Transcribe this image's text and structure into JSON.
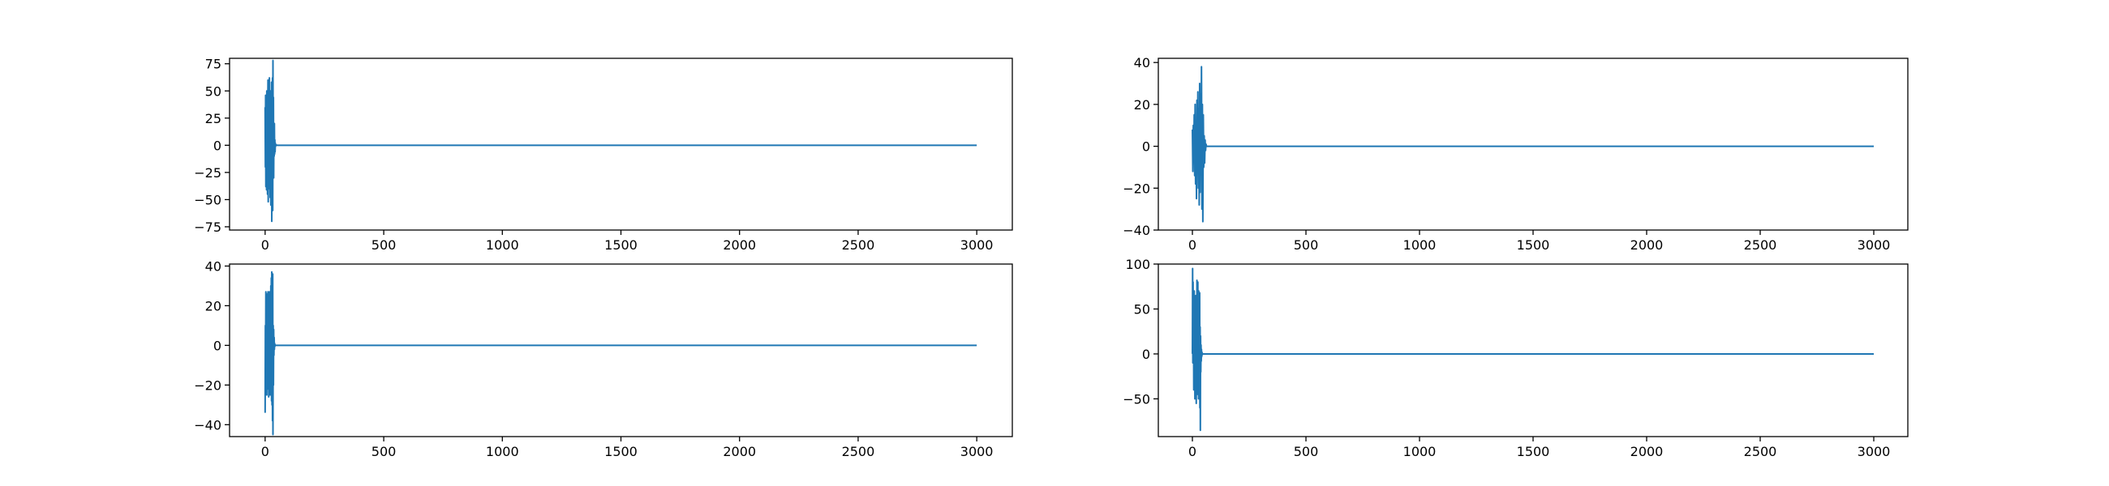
{
  "figure": {
    "background": "#ffffff",
    "line_color": "#1f77b4"
  },
  "chart_data": [
    {
      "type": "line",
      "panel": "top-left",
      "title": "",
      "xlabel": "",
      "ylabel": "",
      "xlim": [
        -150,
        3150
      ],
      "ylim": [
        -78,
        80
      ],
      "xticks": [
        0,
        500,
        1000,
        1500,
        2000,
        2500,
        3000
      ],
      "xtick_labels": [
        "0",
        "500",
        "1000",
        "1500",
        "2000",
        "2500",
        "3000"
      ],
      "yticks": [
        -75,
        -50,
        -25,
        0,
        25,
        50,
        75
      ],
      "ytick_labels": [
        "−75",
        "−50",
        "−25",
        "0",
        "25",
        "50",
        "75"
      ],
      "grid": false,
      "series": [
        {
          "x": [
            0,
            1,
            2,
            3,
            4,
            5,
            6,
            7,
            8,
            9,
            10,
            11,
            12,
            13,
            14,
            15,
            16,
            17,
            18,
            19,
            20,
            21,
            22,
            23,
            24,
            25,
            26,
            27,
            28,
            29,
            30,
            31,
            32,
            33,
            34,
            35,
            36,
            37,
            38,
            39,
            40,
            41,
            42,
            43,
            44,
            45,
            50,
            60,
            80,
            3000
          ],
          "y": [
            35,
            -20,
            46,
            -38,
            44,
            10,
            -41,
            50,
            -25,
            48,
            -45,
            30,
            60,
            -52,
            38,
            -30,
            55,
            -40,
            62,
            -20,
            45,
            -48,
            20,
            50,
            -55,
            30,
            -35,
            58,
            -70,
            40,
            -45,
            62,
            -60,
            78,
            -20,
            44,
            -30,
            15,
            -10,
            20,
            -8,
            5,
            -6,
            2,
            -1,
            0.5,
            0,
            0,
            0,
            0
          ]
        }
      ]
    },
    {
      "type": "line",
      "panel": "top-right",
      "title": "",
      "xlabel": "",
      "ylabel": "",
      "xlim": [
        -150,
        3150
      ],
      "ylim": [
        -40,
        42
      ],
      "xticks": [
        0,
        500,
        1000,
        1500,
        2000,
        2500,
        3000
      ],
      "xtick_labels": [
        "0",
        "500",
        "1000",
        "1500",
        "2000",
        "2500",
        "3000"
      ],
      "yticks": [
        -40,
        -20,
        0,
        20,
        40
      ],
      "ytick_labels": [
        "−40",
        "−20",
        "0",
        "20",
        "40"
      ],
      "grid": false,
      "series": [
        {
          "x": [
            0,
            2,
            4,
            6,
            8,
            10,
            12,
            14,
            16,
            18,
            20,
            22,
            24,
            26,
            28,
            30,
            32,
            34,
            36,
            38,
            40,
            42,
            44,
            46,
            48,
            50,
            52,
            54,
            56,
            58,
            60,
            62,
            70,
            90,
            3000
          ],
          "y": [
            8,
            -12,
            10,
            -6,
            15,
            -14,
            20,
            -18,
            12,
            -25,
            22,
            -10,
            26,
            -20,
            18,
            -28,
            30,
            -22,
            25,
            -12,
            38,
            -30,
            20,
            -36,
            15,
            -10,
            5,
            -8,
            3,
            -2,
            1,
            0,
            0,
            0,
            0
          ]
        }
      ]
    },
    {
      "type": "line",
      "panel": "bottom-left",
      "title": "",
      "xlabel": "",
      "ylabel": "",
      "xlim": [
        -150,
        3150
      ],
      "ylim": [
        -46,
        41
      ],
      "xticks": [
        0,
        500,
        1000,
        1500,
        2000,
        2500,
        3000
      ],
      "xtick_labels": [
        "0",
        "500",
        "1000",
        "1500",
        "2000",
        "2500",
        "3000"
      ],
      "yticks": [
        -40,
        -20,
        0,
        20,
        40
      ],
      "ytick_labels": [
        "−40",
        "−20",
        "0",
        "20",
        "40"
      ],
      "grid": false,
      "series": [
        {
          "x": [
            0,
            1,
            2,
            3,
            4,
            5,
            6,
            7,
            8,
            9,
            10,
            11,
            12,
            13,
            14,
            15,
            16,
            17,
            18,
            19,
            20,
            21,
            22,
            23,
            24,
            25,
            26,
            27,
            28,
            29,
            30,
            31,
            32,
            33,
            34,
            35,
            36,
            37,
            38,
            39,
            40,
            41,
            42,
            44,
            50,
            60,
            80,
            3000
          ],
          "y": [
            -34,
            10,
            -15,
            27,
            -20,
            15,
            26,
            -25,
            20,
            -10,
            25,
            -18,
            27,
            -22,
            12,
            -26,
            24,
            -12,
            27,
            -8,
            18,
            -25,
            26,
            -15,
            30,
            -20,
            34,
            -28,
            37,
            -30,
            22,
            -38,
            36,
            -45,
            10,
            -20,
            8,
            -5,
            4,
            -2,
            1,
            -0.5,
            0.3,
            0,
            0,
            0,
            0,
            0
          ]
        }
      ]
    },
    {
      "type": "line",
      "panel": "bottom-right",
      "title": "",
      "xlabel": "",
      "ylabel": "",
      "xlim": [
        -150,
        3150
      ],
      "ylim": [
        -92,
        100
      ],
      "xticks": [
        0,
        500,
        1000,
        1500,
        2000,
        2500,
        3000
      ],
      "xtick_labels": [
        "0",
        "500",
        "1000",
        "1500",
        "2000",
        "2500",
        "3000"
      ],
      "yticks": [
        -50,
        0,
        50,
        100
      ],
      "ytick_labels": [
        "−50",
        "0",
        "50",
        "100"
      ],
      "grid": false,
      "series": [
        {
          "x": [
            0,
            1,
            2,
            3,
            4,
            5,
            6,
            7,
            8,
            9,
            10,
            11,
            12,
            13,
            14,
            15,
            16,
            17,
            18,
            19,
            20,
            21,
            22,
            23,
            24,
            25,
            26,
            27,
            28,
            29,
            30,
            31,
            32,
            33,
            34,
            35,
            36,
            37,
            38,
            39,
            40,
            41,
            42,
            43,
            44,
            45,
            46,
            47,
            48,
            49,
            50,
            52,
            55,
            60,
            80,
            3000
          ],
          "y": [
            0,
            95,
            -10,
            80,
            20,
            60,
            -40,
            45,
            70,
            -20,
            55,
            -50,
            40,
            30,
            -30,
            65,
            10,
            -55,
            50,
            -35,
            82,
            -20,
            40,
            -45,
            80,
            -30,
            60,
            -50,
            70,
            -10,
            45,
            -40,
            68,
            -60,
            30,
            -85,
            20,
            -20,
            10,
            -8,
            5,
            -3,
            2,
            -1,
            0.5,
            0,
            0,
            0,
            0,
            0,
            0,
            0,
            0,
            0,
            0,
            0
          ]
        }
      ]
    }
  ]
}
